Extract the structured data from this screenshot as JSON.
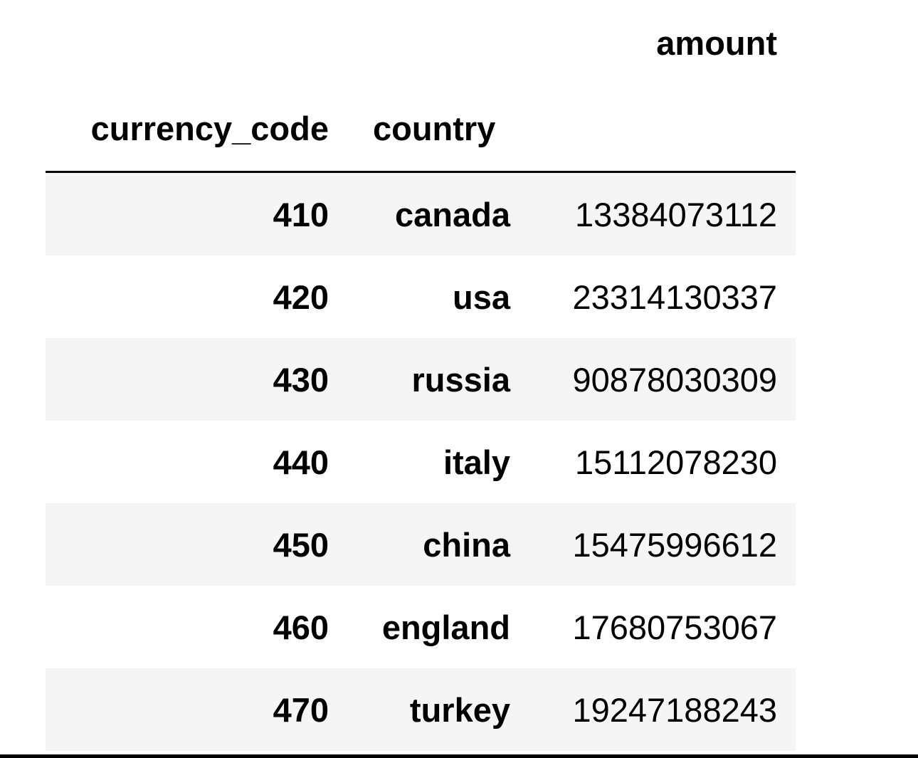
{
  "table": {
    "columns": {
      "amount_header": "amount",
      "index_headers": [
        "currency_code",
        "country"
      ]
    },
    "rows": [
      {
        "currency_code": "410",
        "country": "canada",
        "amount": "13384073112"
      },
      {
        "currency_code": "420",
        "country": "usa",
        "amount": "23314130337"
      },
      {
        "currency_code": "430",
        "country": "russia",
        "amount": "90878030309"
      },
      {
        "currency_code": "440",
        "country": "italy",
        "amount": "15112078230"
      },
      {
        "currency_code": "450",
        "country": "china",
        "amount": "15475996612"
      },
      {
        "currency_code": "460",
        "country": "england",
        "amount": "17680753067"
      },
      {
        "currency_code": "470",
        "country": "turkey",
        "amount": "19247188243"
      }
    ]
  },
  "colors": {
    "stripe": "#f5f5f5",
    "background": "#ffffff",
    "text": "#000000",
    "rule": "#000000"
  }
}
